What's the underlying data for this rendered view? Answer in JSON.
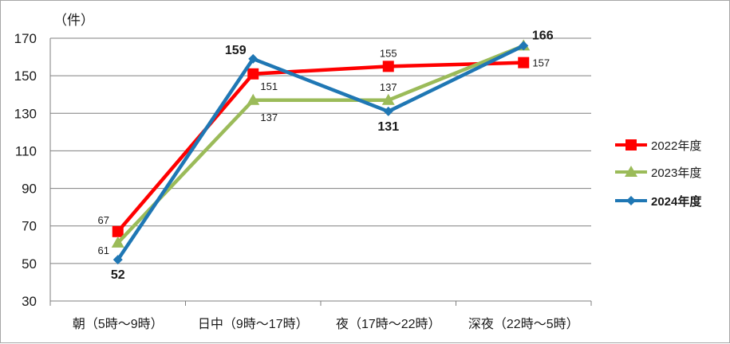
{
  "chart_data": {
    "type": "line",
    "unit_label": "（件）",
    "categories": [
      "朝（5時～9時）",
      "日中（9時～17時）",
      "夜（17時～22時）",
      "深夜（22時～5時）"
    ],
    "ylim": [
      30,
      170
    ],
    "yticks": [
      30,
      50,
      70,
      90,
      110,
      130,
      150,
      170
    ],
    "grid": true,
    "legend_position": "right",
    "series": [
      {
        "name": "2022年度",
        "values": [
          67,
          151,
          155,
          157
        ],
        "color": "#ff0000",
        "marker": "square",
        "bold": false,
        "labels": [
          "67",
          "151",
          "155",
          "157"
        ]
      },
      {
        "name": "2023年度",
        "values": [
          61,
          137,
          137,
          166
        ],
        "color": "#9bbb59",
        "marker": "triangle",
        "bold": false,
        "labels": [
          "61",
          "137",
          "137",
          ""
        ]
      },
      {
        "name": "2024年度",
        "values": [
          52,
          159,
          131,
          166
        ],
        "color": "#1f77b4",
        "marker": "diamond",
        "bold": true,
        "labels": [
          "52",
          "159",
          "131",
          "166"
        ]
      }
    ]
  }
}
